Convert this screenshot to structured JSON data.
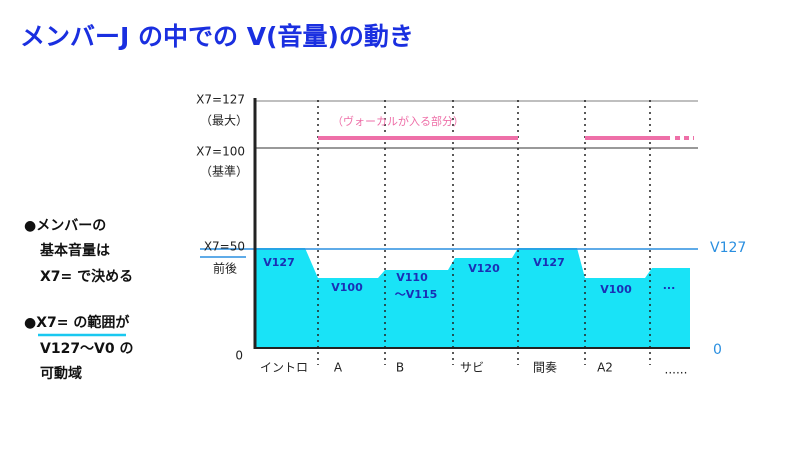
{
  "title": "メンバーJ の中での V(音量)の動き",
  "y_labels": {
    "max": "X7=127",
    "max_note": "（最大）",
    "base": "X7=100",
    "base_note": "（基準）",
    "around50": "X7=50",
    "around50_note": "前後",
    "zero": "0"
  },
  "vocal_note": "（ヴォーカルが入る部分）",
  "segments": [
    "イントロ",
    "A",
    "B",
    "サビ",
    "間奏",
    "A2",
    "......"
  ],
  "levels": [
    "V127",
    "V100",
    "V110",
    "～V115",
    "V120",
    "V127",
    "V100",
    "..."
  ],
  "right_labels": {
    "top": "V127",
    "bottom": "0"
  },
  "notes": [
    "●メンバーの",
    "基本音量は",
    "X7= で決める",
    "●X7= の範囲が",
    "V127～V0 の",
    "可動域"
  ]
}
